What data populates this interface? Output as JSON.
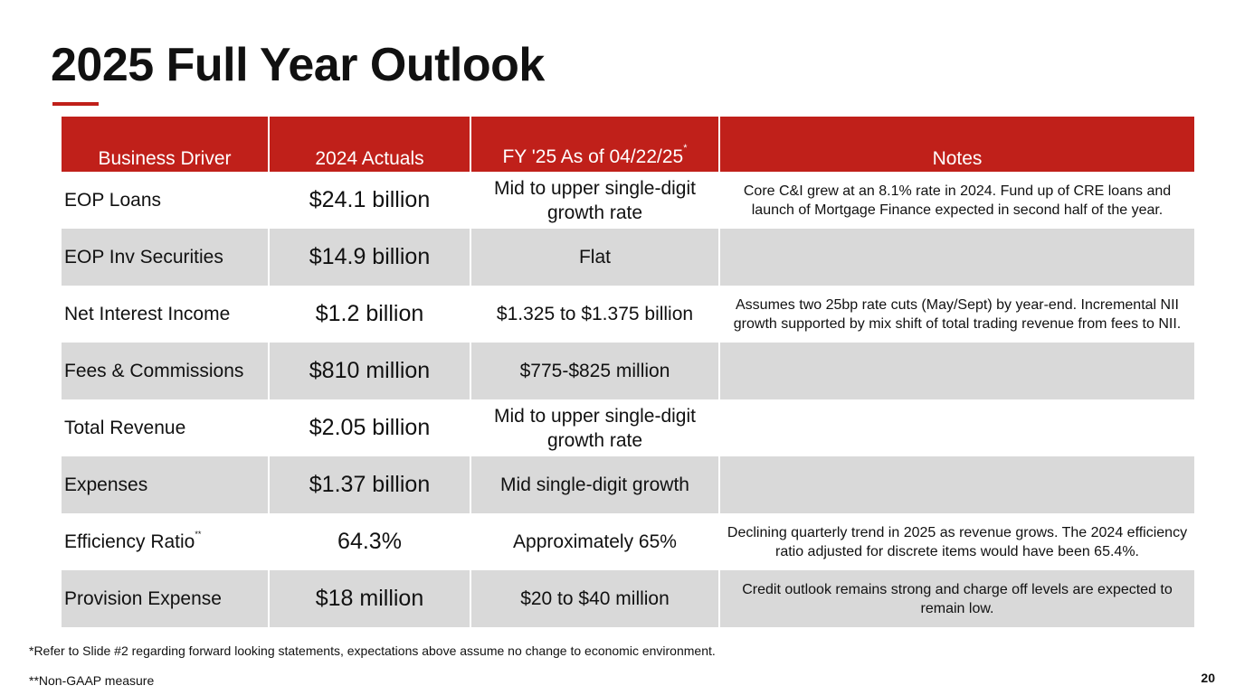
{
  "title": "2025 Full Year Outlook",
  "colors": {
    "accent": "#c0201a",
    "shade": "#d9d9d9"
  },
  "table": {
    "headers": {
      "driver": "Business Driver",
      "actuals": "2024 Actuals",
      "fy": "FY '25 As of 04/22/25",
      "fy_sup": "*",
      "notes": "Notes"
    },
    "rows": [
      {
        "driver": "EOP Loans",
        "sup": "",
        "actual": "$24.1 billion",
        "fy": "Mid to upper single-digit growth rate",
        "notes": "Core C&I grew at an 8.1% rate in 2024. Fund up of CRE loans and launch of Mortgage Finance expected in second half of the year."
      },
      {
        "driver": "EOP Inv Securities",
        "sup": "",
        "actual": "$14.9 billion",
        "fy": "Flat",
        "notes": ""
      },
      {
        "driver": "Net Interest Income",
        "sup": "",
        "actual": "$1.2 billion",
        "fy": "$1.325 to $1.375 billion",
        "notes": "Assumes two 25bp rate cuts (May/Sept) by year-end. Incremental NII growth supported by mix shift of total trading revenue from fees to NII."
      },
      {
        "driver": "Fees & Commissions",
        "sup": "",
        "actual": "$810 million",
        "fy": "$775-$825 million",
        "notes": ""
      },
      {
        "driver": "Total Revenue",
        "sup": "",
        "actual": "$2.05 billion",
        "fy": "Mid to upper single-digit growth rate",
        "notes": ""
      },
      {
        "driver": "Expenses",
        "sup": "",
        "actual": "$1.37 billion",
        "fy": "Mid single-digit growth",
        "notes": ""
      },
      {
        "driver": "Efficiency Ratio",
        "sup": "**",
        "actual": "64.3%",
        "fy": "Approximately 65%",
        "notes": "Declining quarterly trend in 2025 as revenue grows. The 2024 efficiency ratio adjusted for discrete items would have been 65.4%."
      },
      {
        "driver": "Provision Expense",
        "sup": "",
        "actual": "$18 million",
        "fy": "$20 to $40 million",
        "notes": "Credit outlook remains strong and charge off levels are expected to remain low."
      }
    ]
  },
  "footnotes": [
    "*Refer to Slide #2 regarding forward looking statements, expectations above assume no change to economic environment.",
    "**Non-GAAP measure"
  ],
  "page_number": "20"
}
